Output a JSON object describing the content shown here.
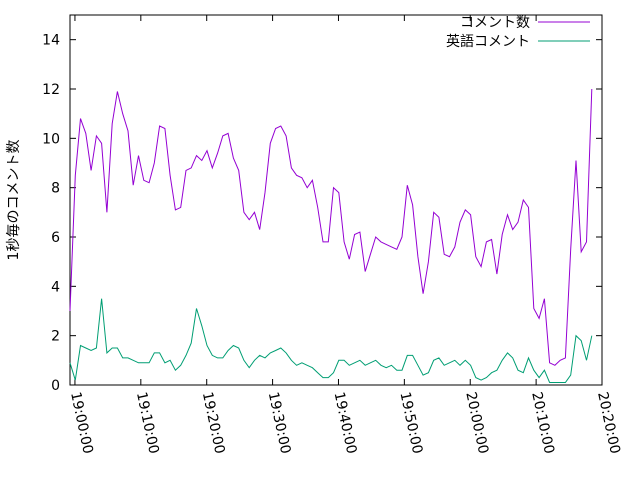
{
  "chart_data": {
    "type": "line",
    "ylabel": "1秒毎のコメント数",
    "x": [
      "18:59:15",
      "19:00:03",
      "19:00:51",
      "19:01:39",
      "19:02:27",
      "19:03:15",
      "19:04:03",
      "19:04:51",
      "19:05:39",
      "19:06:27",
      "19:07:15",
      "19:08:03",
      "19:08:51",
      "19:09:39",
      "19:10:27",
      "19:11:15",
      "19:12:03",
      "19:12:51",
      "19:13:39",
      "19:14:27",
      "19:15:15",
      "19:16:03",
      "19:16:51",
      "19:17:39",
      "19:18:27",
      "19:19:15",
      "19:20:03",
      "19:20:51",
      "19:21:39",
      "19:22:27",
      "19:23:15",
      "19:24:03",
      "19:24:51",
      "19:25:39",
      "19:26:27",
      "19:27:15",
      "19:28:03",
      "19:28:51",
      "19:29:39",
      "19:30:27",
      "19:31:15",
      "19:32:03",
      "19:32:51",
      "19:33:39",
      "19:34:27",
      "19:35:15",
      "19:36:03",
      "19:36:51",
      "19:37:39",
      "19:38:27",
      "19:39:15",
      "19:40:03",
      "19:40:51",
      "19:41:39",
      "19:42:27",
      "19:43:15",
      "19:44:03",
      "19:44:51",
      "19:45:39",
      "19:46:27",
      "19:47:15",
      "19:48:03",
      "19:48:51",
      "19:49:39",
      "19:50:27",
      "19:51:15",
      "19:52:03",
      "19:52:51",
      "19:53:39",
      "19:54:27",
      "19:55:15",
      "19:56:03",
      "19:56:51",
      "19:57:39",
      "19:58:27",
      "19:59:15",
      "20:00:03",
      "20:00:51",
      "20:01:39",
      "20:02:27",
      "20:03:15",
      "20:04:03",
      "20:04:51",
      "20:05:39",
      "20:06:27",
      "20:07:15",
      "20:08:03",
      "20:08:51",
      "20:09:39",
      "20:10:27",
      "20:11:15",
      "20:12:03",
      "20:12:51",
      "20:13:39",
      "20:14:27",
      "20:15:15",
      "20:16:03",
      "20:16:51",
      "20:17:39",
      "20:18:27"
    ],
    "series": [
      {
        "name": "コメント数",
        "color": "#9400d3",
        "values": [
          3,
          8.5,
          10.8,
          10.2,
          8.7,
          10.1,
          9.8,
          7,
          10.6,
          11.9,
          11,
          10.3,
          8.1,
          9.3,
          8.3,
          8.2,
          9,
          10.5,
          10.4,
          8.5,
          7.1,
          7.2,
          8.7,
          8.8,
          9.3,
          9.1,
          9.5,
          8.8,
          9.4,
          10.1,
          10.2,
          9.2,
          8.7,
          7,
          6.7,
          7,
          6.3,
          7.8,
          9.8,
          10.4,
          10.5,
          10.1,
          8.8,
          8.5,
          8.4,
          8,
          8.3,
          7.2,
          5.8,
          5.8,
          8,
          7.8,
          5.8,
          5.1,
          6.1,
          6.2,
          4.6,
          5.3,
          6,
          5.8,
          5.7,
          5.6,
          5.5,
          6,
          8.1,
          7.3,
          5.2,
          3.7,
          5,
          7,
          6.8,
          5.3,
          5.2,
          5.6,
          6.6,
          7.1,
          6.9,
          5.2,
          4.8,
          5.8,
          5.9,
          4.5,
          6.1,
          6.9,
          6.3,
          6.6,
          7.5,
          7.2,
          3.1,
          2.7,
          3.5,
          0.9,
          0.8,
          1,
          1.1,
          5.5,
          9.1,
          5.4,
          5.8,
          12
        ]
      },
      {
        "name": "英語コメント",
        "color": "#009e73",
        "values": [
          0.9,
          0.2,
          1.6,
          1.5,
          1.4,
          1.5,
          3.5,
          1.3,
          1.5,
          1.5,
          1.1,
          1.1,
          1,
          0.9,
          0.9,
          0.9,
          1.3,
          1.3,
          0.9,
          1,
          0.6,
          0.8,
          1.2,
          1.7,
          3.1,
          2.4,
          1.6,
          1.2,
          1.1,
          1.1,
          1.4,
          1.6,
          1.5,
          1,
          0.7,
          1,
          1.2,
          1.1,
          1.3,
          1.4,
          1.5,
          1.3,
          1,
          0.8,
          0.9,
          0.8,
          0.7,
          0.5,
          0.3,
          0.3,
          0.5,
          1,
          1,
          0.8,
          0.9,
          1,
          0.8,
          0.9,
          1,
          0.8,
          0.7,
          0.8,
          0.6,
          0.6,
          1.2,
          1.2,
          0.8,
          0.4,
          0.5,
          1,
          1.1,
          0.8,
          0.9,
          1,
          0.8,
          1,
          0.8,
          0.3,
          0.2,
          0.3,
          0.5,
          0.6,
          1,
          1.3,
          1.1,
          0.6,
          0.5,
          1.1,
          0.6,
          0.3,
          0.6,
          0.1,
          0.1,
          0.1,
          0.1,
          0.4,
          2,
          1.8,
          1,
          2
        ]
      }
    ],
    "xlim": [
      "18:59:15",
      "20:20:00"
    ],
    "xticks": [
      "19:00:00",
      "19:10:00",
      "19:20:00",
      "19:30:00",
      "19:40:00",
      "19:50:00",
      "20:00:00",
      "20:10:00",
      "20:20:00"
    ],
    "ylim": [
      0,
      15
    ],
    "yticks": [
      0,
      2,
      4,
      6,
      8,
      10,
      12,
      14
    ],
    "legend": "top-right"
  }
}
